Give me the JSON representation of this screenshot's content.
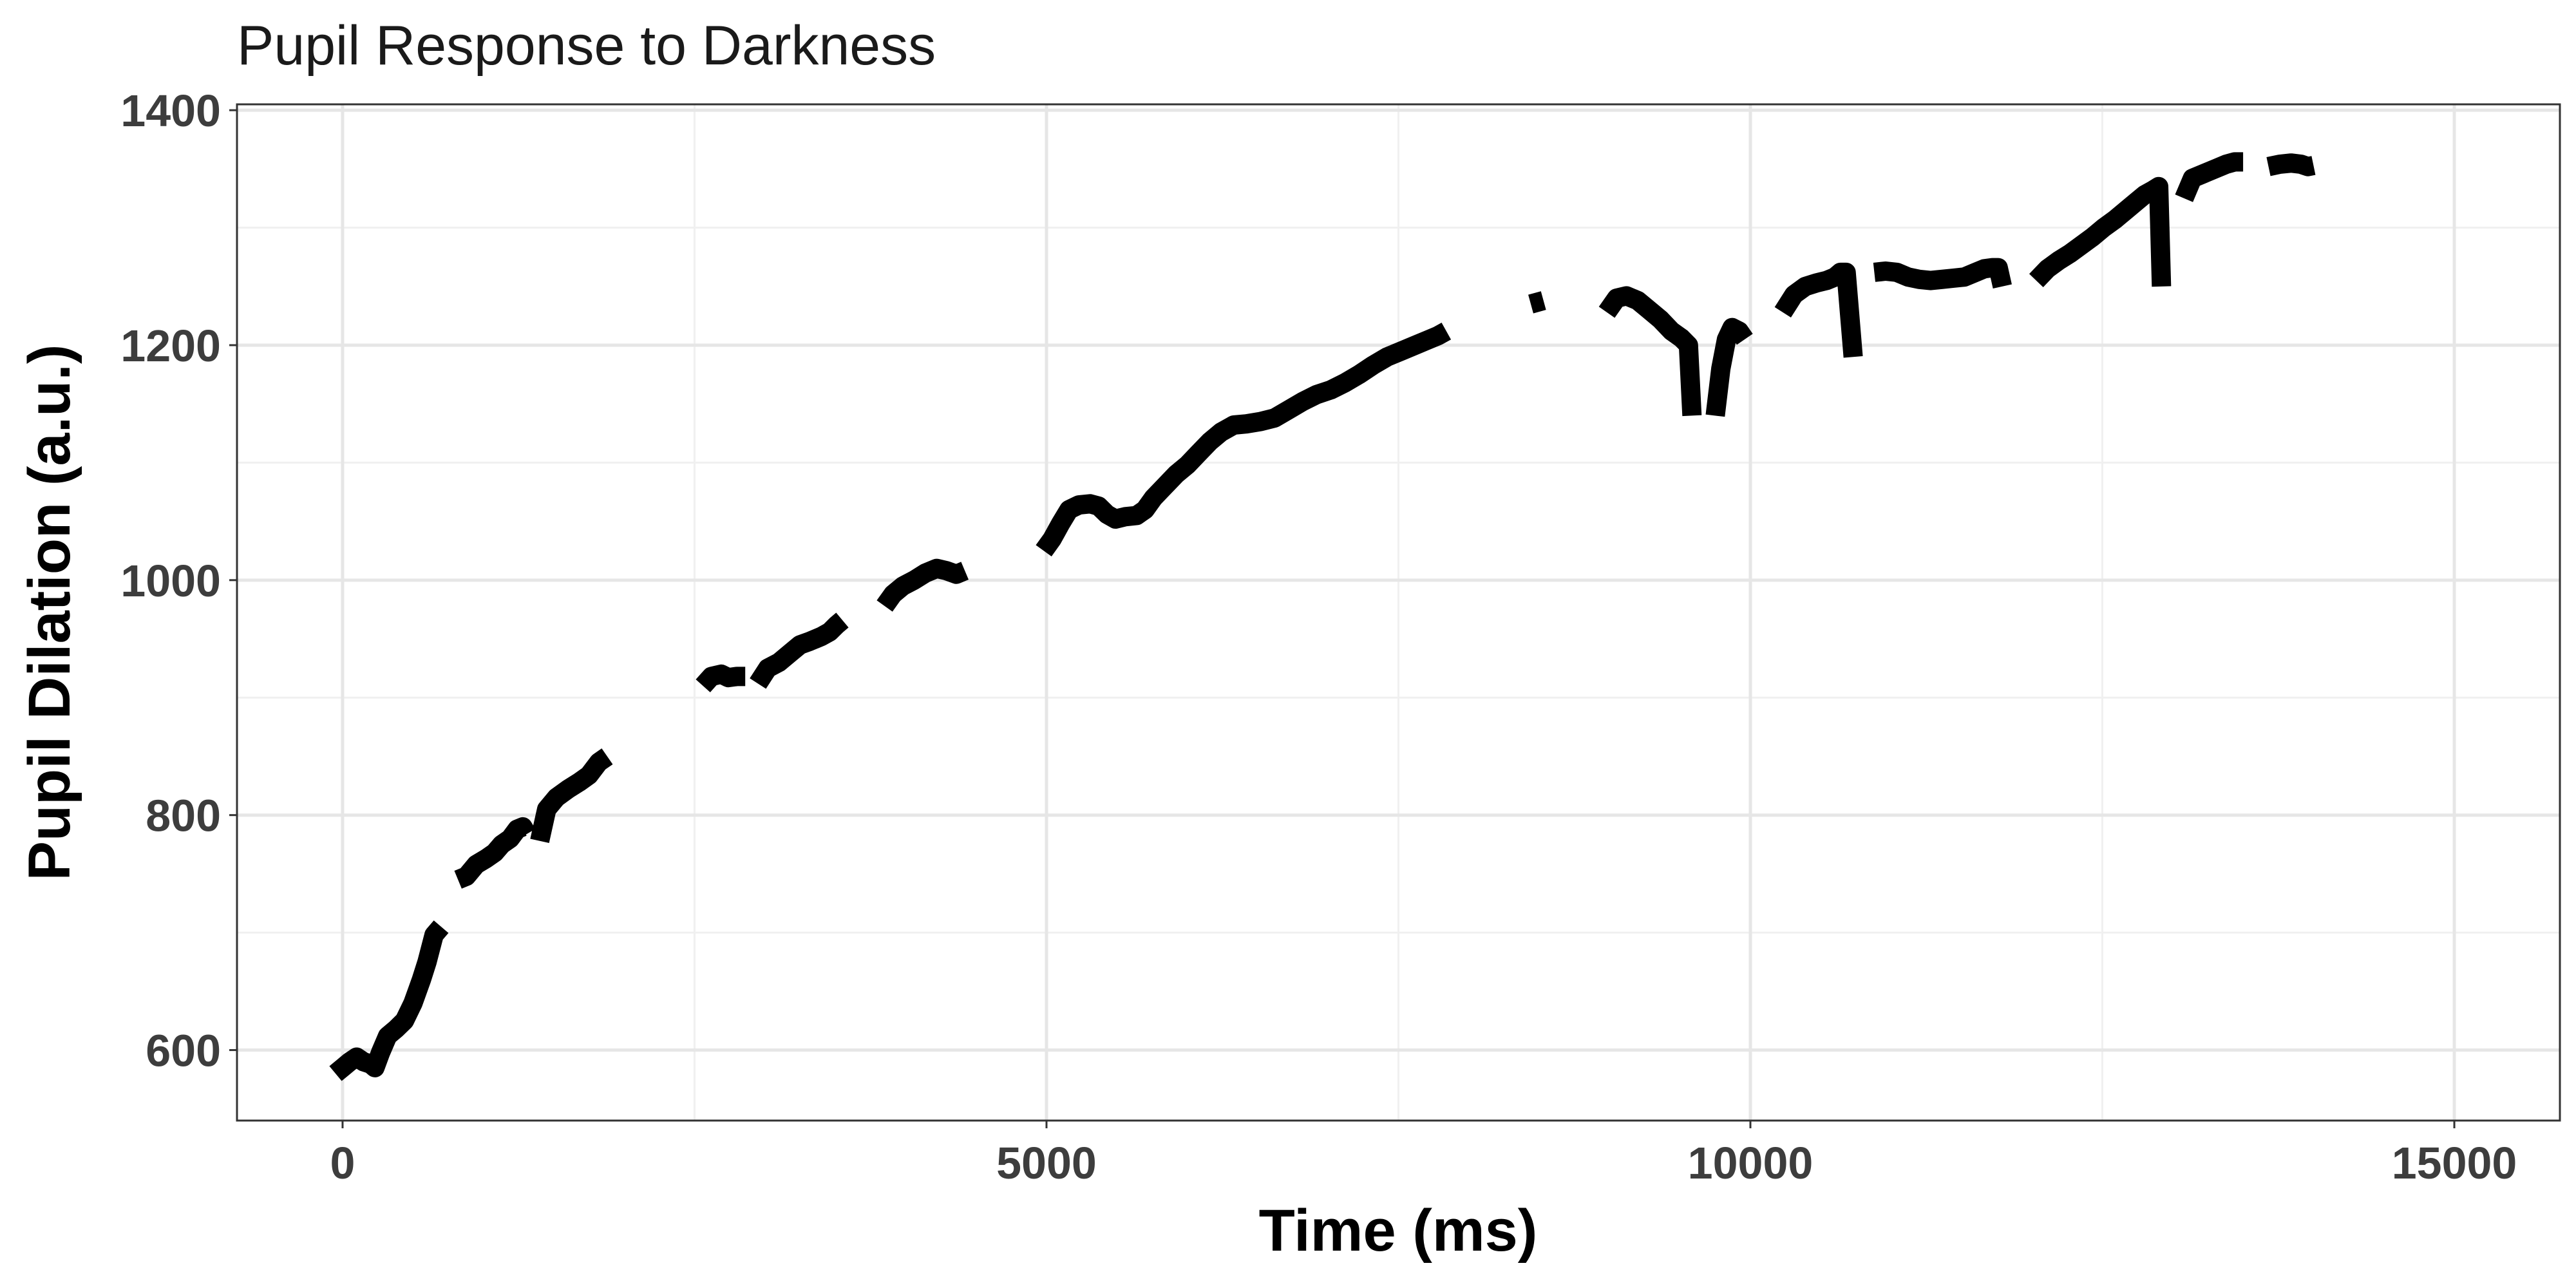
{
  "chart_data": {
    "type": "line",
    "title": "Pupil Response to Darkness",
    "xlabel": "Time (ms)",
    "ylabel": "Pupil Dilation (a.u.)",
    "xlim": [
      -750,
      15750
    ],
    "ylim": [
      540,
      1405
    ],
    "x_ticks": [
      0,
      5000,
      10000,
      15000
    ],
    "x_tick_labels": [
      "0",
      "5000",
      "10000",
      "15000"
    ],
    "y_ticks": [
      600,
      800,
      1000,
      1200,
      1400
    ],
    "y_tick_labels": [
      "600",
      "800",
      "1000",
      "1200",
      "1400"
    ],
    "grid": true,
    "line_color": "#000000",
    "segments": [
      [
        [
          -50,
          580
        ],
        [
          0,
          585
        ],
        [
          50,
          590
        ],
        [
          100,
          594
        ],
        [
          150,
          590
        ],
        [
          200,
          588
        ],
        [
          230,
          585
        ],
        [
          270,
          598
        ],
        [
          320,
          612
        ],
        [
          380,
          618
        ],
        [
          440,
          625
        ],
        [
          500,
          640
        ],
        [
          560,
          660
        ],
        [
          600,
          675
        ],
        [
          650,
          698
        ],
        [
          700,
          705
        ]
      ],
      [
        [
          820,
          745
        ],
        [
          880,
          748
        ],
        [
          950,
          758
        ],
        [
          1020,
          763
        ],
        [
          1080,
          768
        ],
        [
          1130,
          775
        ],
        [
          1190,
          780
        ],
        [
          1240,
          788
        ],
        [
          1280,
          790
        ],
        [
          1310,
          784
        ]
      ],
      [
        [
          1400,
          778
        ],
        [
          1450,
          805
        ],
        [
          1520,
          815
        ],
        [
          1600,
          822
        ],
        [
          1680,
          828
        ],
        [
          1750,
          834
        ],
        [
          1820,
          845
        ],
        [
          1880,
          850
        ]
      ],
      [
        [
          2560,
          910
        ],
        [
          2620,
          918
        ],
        [
          2690,
          920
        ],
        [
          2740,
          917
        ],
        [
          2800,
          918
        ],
        [
          2860,
          918
        ]
      ],
      [
        [
          2950,
          912
        ],
        [
          3020,
          925
        ],
        [
          3100,
          930
        ],
        [
          3180,
          938
        ],
        [
          3250,
          945
        ],
        [
          3320,
          948
        ],
        [
          3400,
          952
        ],
        [
          3460,
          956
        ],
        [
          3510,
          962
        ],
        [
          3550,
          966
        ]
      ],
      [
        [
          3850,
          978
        ],
        [
          3910,
          988
        ],
        [
          3980,
          995
        ],
        [
          4060,
          1000
        ],
        [
          4140,
          1006
        ],
        [
          4220,
          1010
        ],
        [
          4290,
          1008
        ],
        [
          4360,
          1005
        ],
        [
          4420,
          1008
        ]
      ],
      [
        [
          4980,
          1025
        ],
        [
          5040,
          1035
        ],
        [
          5100,
          1048
        ],
        [
          5160,
          1060
        ],
        [
          5230,
          1064
        ],
        [
          5310,
          1065
        ],
        [
          5370,
          1063
        ],
        [
          5430,
          1056
        ],
        [
          5490,
          1052
        ],
        [
          5560,
          1054
        ],
        [
          5640,
          1055
        ],
        [
          5700,
          1060
        ],
        [
          5760,
          1070
        ],
        [
          5840,
          1080
        ],
        [
          5920,
          1090
        ],
        [
          6000,
          1098
        ],
        [
          6080,
          1108
        ],
        [
          6160,
          1118
        ],
        [
          6240,
          1126
        ],
        [
          6330,
          1132
        ],
        [
          6420,
          1133
        ],
        [
          6520,
          1135
        ],
        [
          6620,
          1138
        ],
        [
          6720,
          1145
        ],
        [
          6820,
          1152
        ],
        [
          6920,
          1158
        ],
        [
          7020,
          1162
        ],
        [
          7120,
          1168
        ],
        [
          7220,
          1175
        ],
        [
          7320,
          1183
        ],
        [
          7420,
          1190
        ],
        [
          7520,
          1195
        ],
        [
          7620,
          1200
        ],
        [
          7700,
          1204
        ],
        [
          7780,
          1208
        ],
        [
          7840,
          1212
        ]
      ],
      [
        [
          8440,
          1235
        ],
        [
          8530,
          1238
        ]
      ],
      [
        [
          8980,
          1228
        ],
        [
          9050,
          1240
        ],
        [
          9120,
          1242
        ],
        [
          9200,
          1238
        ],
        [
          9280,
          1230
        ],
        [
          9360,
          1222
        ],
        [
          9440,
          1212
        ],
        [
          9510,
          1206
        ],
        [
          9560,
          1200
        ],
        [
          9585,
          1140
        ]
      ],
      [
        [
          9750,
          1140
        ],
        [
          9790,
          1180
        ],
        [
          9830,
          1205
        ],
        [
          9870,
          1215
        ],
        [
          9920,
          1212
        ],
        [
          9960,
          1205
        ]
      ],
      [
        [
          10230,
          1228
        ],
        [
          10310,
          1243
        ],
        [
          10390,
          1250
        ],
        [
          10470,
          1253
        ],
        [
          10540,
          1255
        ],
        [
          10600,
          1258
        ],
        [
          10640,
          1262
        ],
        [
          10680,
          1262
        ],
        [
          10730,
          1190
        ]
      ],
      [
        [
          10880,
          1262
        ],
        [
          10960,
          1263
        ],
        [
          11040,
          1262
        ],
        [
          11120,
          1258
        ],
        [
          11200,
          1256
        ],
        [
          11280,
          1255
        ],
        [
          11360,
          1256
        ],
        [
          11440,
          1257
        ],
        [
          11520,
          1258
        ],
        [
          11600,
          1262
        ],
        [
          11660,
          1265
        ],
        [
          11720,
          1266
        ],
        [
          11760,
          1266
        ],
        [
          11790,
          1250
        ]
      ],
      [
        [
          12030,
          1255
        ],
        [
          12110,
          1265
        ],
        [
          12190,
          1272
        ],
        [
          12270,
          1278
        ],
        [
          12350,
          1285
        ],
        [
          12430,
          1292
        ],
        [
          12510,
          1300
        ],
        [
          12590,
          1307
        ],
        [
          12670,
          1315
        ],
        [
          12740,
          1322
        ],
        [
          12800,
          1328
        ],
        [
          12860,
          1332
        ],
        [
          12900,
          1335
        ],
        [
          12920,
          1250
        ]
      ],
      [
        [
          13080,
          1325
        ],
        [
          13140,
          1342
        ],
        [
          13220,
          1346
        ],
        [
          13300,
          1350
        ],
        [
          13380,
          1354
        ],
        [
          13440,
          1356
        ],
        [
          13500,
          1356
        ]
      ],
      [
        [
          13680,
          1352
        ],
        [
          13760,
          1354
        ],
        [
          13840,
          1355
        ],
        [
          13910,
          1354
        ],
        [
          13960,
          1352
        ],
        [
          14000,
          1353
        ]
      ]
    ]
  }
}
